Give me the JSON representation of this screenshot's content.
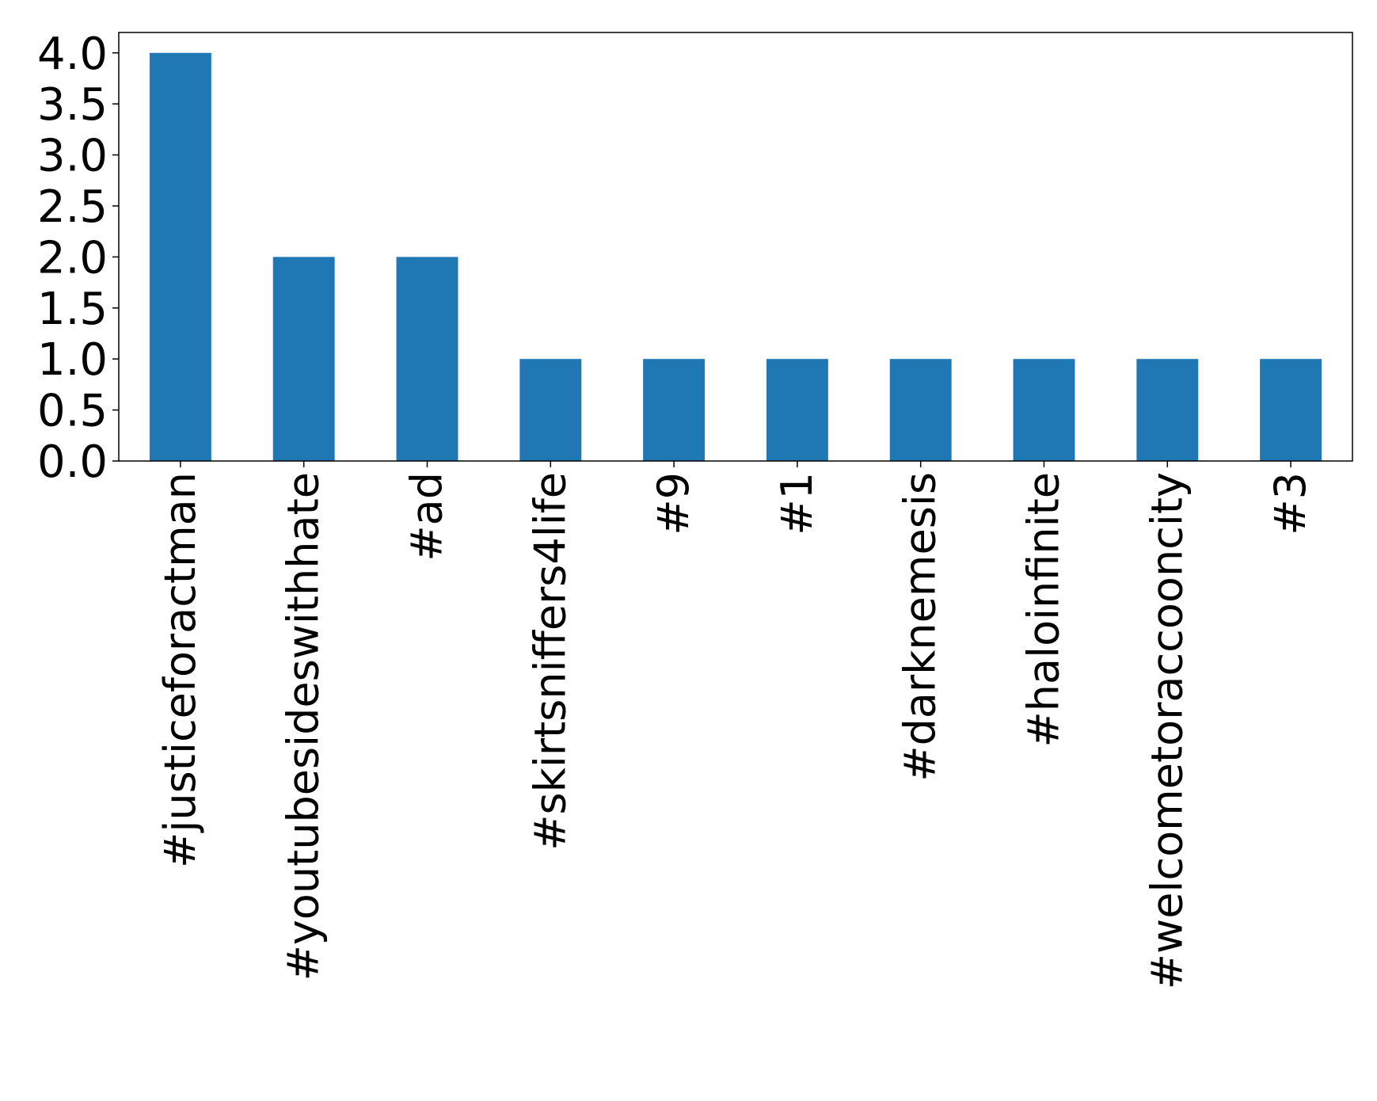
{
  "chart_data": {
    "type": "bar",
    "title": "",
    "xlabel": "",
    "ylabel": "",
    "categories": [
      "#justiceforactman",
      "#youtubesideswithhate",
      "#ad",
      "#skirtsniffers4life",
      "#9",
      "#1",
      "#darknemesis",
      "#haloinfinite",
      "#welcometoraccooncity",
      "#3"
    ],
    "values": [
      4,
      2,
      2,
      1,
      1,
      1,
      1,
      1,
      1,
      1
    ],
    "ylim": [
      0,
      4.2
    ],
    "yticks": [
      0.0,
      0.5,
      1.0,
      1.5,
      2.0,
      2.5,
      3.0,
      3.5,
      4.0
    ],
    "ytick_labels": [
      "0.0",
      "0.5",
      "1.0",
      "1.5",
      "2.0",
      "2.5",
      "3.0",
      "3.5",
      "4.0"
    ],
    "bar_color": "#1f77b4",
    "grid": false,
    "legend": "none"
  }
}
